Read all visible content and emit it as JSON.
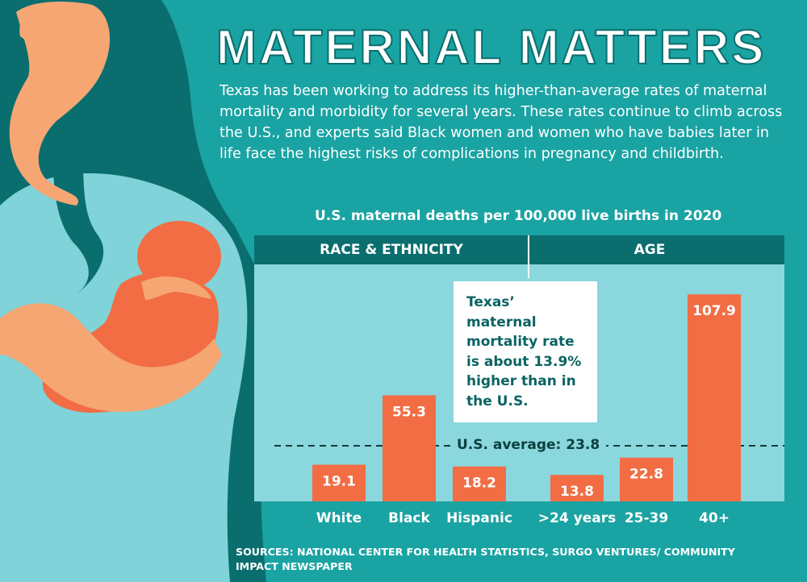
{
  "title": "MATERNAL MATTERS",
  "intro": "Texas has been working to address its higher-than-average rates of maternal mortality and morbidity for several years. These rates continue to climb across the U.S., and experts said Black women and women who have babies later in life face the highest risks of complications in pregnancy and childbirth.",
  "callout": "Texas’ maternal mortality rate is about 13.9% higher than in the U.S.",
  "sources": "SOURCES: NATIONAL CENTER FOR HEALTH STATISTICS, SURGO VENTURES/ COMMUNITY IMPACT NEWSPAPER",
  "colors": {
    "background": "#1aa3a3",
    "dark_teal": "#0b6e6e",
    "panel": "#8ad7dd",
    "bar": "#f26d43",
    "skin": "#f5a673"
  },
  "chart_data": {
    "type": "bar",
    "title": "U.S. maternal deaths per 100,000 live births in 2020",
    "groups": [
      "RACE & ETHNICITY",
      "AGE"
    ],
    "categories": [
      "White",
      "Black",
      "Hispanic",
      ">24 years",
      "25-39",
      "40+"
    ],
    "category_groups": [
      "RACE & ETHNICITY",
      "RACE & ETHNICITY",
      "RACE & ETHNICITY",
      "AGE",
      "AGE",
      "AGE"
    ],
    "values": [
      19.1,
      55.3,
      18.2,
      13.8,
      22.8,
      107.9
    ],
    "value_labels": [
      "19.1",
      "55.3",
      "18.2",
      "13.8",
      "22.8",
      "107.9"
    ],
    "reference_line": {
      "label": "U.S. average: 23.8",
      "value": 23.8
    },
    "bar_color": "#f26d43"
  }
}
